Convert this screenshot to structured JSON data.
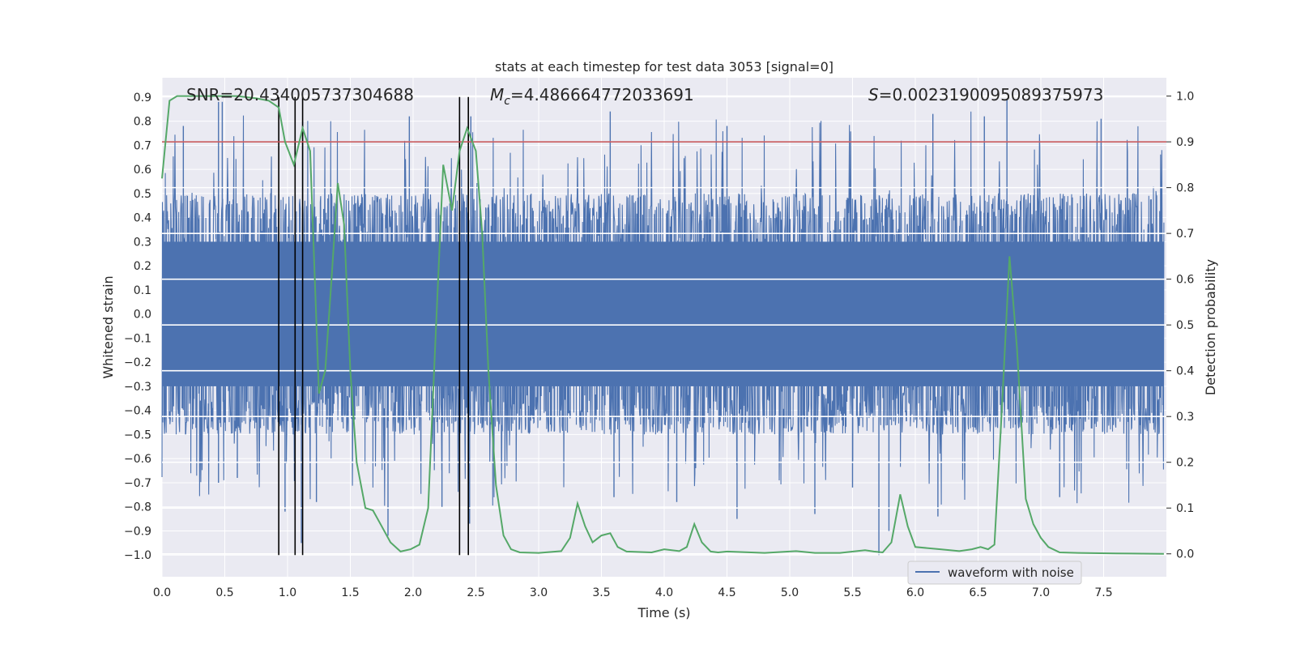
{
  "chart_data": {
    "type": "line",
    "title": "stats at each timestep for test data 3053 [signal=0]",
    "xlabel": "Time (s)",
    "ylabel_left": "Whitened strain",
    "ylabel_right": "Detection probability",
    "xlim": [
      0.0,
      8.0
    ],
    "ylim_left": [
      -1.09,
      0.98
    ],
    "ylim_right": [
      -0.05,
      1.04
    ],
    "x_ticks": [
      0.0,
      0.5,
      1.0,
      1.5,
      2.0,
      2.5,
      3.0,
      3.5,
      4.0,
      4.5,
      5.0,
      5.5,
      6.0,
      6.5,
      7.0,
      7.5
    ],
    "x_tick_labels": [
      "0.0",
      "0.5",
      "1.0",
      "1.5",
      "2.0",
      "2.5",
      "3.0",
      "3.5",
      "4.0",
      "4.5",
      "5.0",
      "5.5",
      "6.0",
      "6.5",
      "7.0",
      "7.5"
    ],
    "y_left_ticks": [
      0.9,
      0.8,
      0.7,
      0.6,
      0.5,
      0.4,
      0.3,
      0.2,
      0.1,
      0.0,
      -0.1,
      -0.2,
      -0.3,
      -0.4,
      -0.5,
      -0.6,
      -0.7,
      -0.8,
      -0.9,
      -1.0
    ],
    "y_left_tick_labels": [
      "0.9",
      "0.8",
      "0.7",
      "0.6",
      "0.5",
      "0.4",
      "0.3",
      "0.2",
      "0.1",
      "0.0",
      "−0.1",
      "−0.2",
      "−0.3",
      "−0.4",
      "−0.5",
      "−0.6",
      "−0.7",
      "−0.8",
      "−0.9",
      "−1.0"
    ],
    "y_right_ticks": [
      1.0,
      0.9,
      0.8,
      0.7,
      0.6,
      0.5,
      0.4,
      0.3,
      0.2,
      0.1,
      0.0
    ],
    "y_right_tick_labels": [
      "1.0",
      "0.9",
      "0.8",
      "0.7",
      "0.6",
      "0.5",
      "0.4",
      "0.3",
      "0.2",
      "0.1",
      "0.0"
    ],
    "annotations": {
      "snr": "SNR=20.434005737304688",
      "mc_symbol": "M",
      "mc_sub": "c",
      "mc_value": "=4.486664772033691",
      "s_symbol": "S",
      "s_value": "=0.0023190095089375973"
    },
    "threshold": {
      "value": 0.9,
      "axis": "right",
      "color": "#c44e52"
    },
    "vertical_markers": [
      0.93,
      1.06,
      1.12,
      2.37,
      2.44
    ],
    "vertical_marker_range": [
      -1.0,
      0.9
    ],
    "legend": {
      "label": "waveform with noise",
      "position": "lower-right"
    },
    "series": [
      {
        "name": "waveform with noise",
        "axis": "left",
        "color": "#4c72b0",
        "dense_band": [
          -0.3,
          0.3
        ],
        "envelope_amplitude": 0.5,
        "peaks": [
          {
            "x": 0.45,
            "y": 0.88
          },
          {
            "x": 0.48,
            "y": 0.88
          },
          {
            "x": 1.12,
            "y": 0.8
          },
          {
            "x": 1.97,
            "y": 0.82
          },
          {
            "x": 2.37,
            "y": 0.82
          },
          {
            "x": 2.46,
            "y": 0.82
          },
          {
            "x": 3.57,
            "y": 0.84
          },
          {
            "x": 6.73,
            "y": 0.89
          },
          {
            "x": 6.55,
            "y": 0.82
          },
          {
            "x": 6.14,
            "y": 0.83
          },
          {
            "x": 7.48,
            "y": 0.81
          },
          {
            "x": 0.17,
            "y": 0.78
          },
          {
            "x": 4.5,
            "y": 0.78
          },
          {
            "x": 5.71,
            "y": -1.0
          },
          {
            "x": 1.11,
            "y": -0.95
          },
          {
            "x": 1.8,
            "y": -0.92
          },
          {
            "x": 5.79,
            "y": -0.9
          },
          {
            "x": 4.58,
            "y": -0.85
          },
          {
            "x": 6.18,
            "y": -0.84
          },
          {
            "x": 5.2,
            "y": -0.83
          },
          {
            "x": 2.45,
            "y": -0.87
          },
          {
            "x": 2.23,
            "y": -0.8
          },
          {
            "x": 0.98,
            "y": -0.82
          },
          {
            "x": 1.23,
            "y": -0.78
          },
          {
            "x": 7.15,
            "y": -0.76
          },
          {
            "x": 0.45,
            "y": -0.7
          },
          {
            "x": 0.6,
            "y": -0.68
          },
          {
            "x": 3.6,
            "y": -0.76
          },
          {
            "x": 4.1,
            "y": -0.78
          },
          {
            "x": 5.5,
            "y": -0.72
          }
        ]
      },
      {
        "name": "detection probability",
        "axis": "right",
        "color": "#55a868",
        "x": [
          0.0,
          0.06,
          0.12,
          0.3,
          0.45,
          0.6,
          0.75,
          0.85,
          0.93,
          0.98,
          1.05,
          1.12,
          1.18,
          1.25,
          1.3,
          1.35,
          1.4,
          1.45,
          1.5,
          1.55,
          1.62,
          1.68,
          1.75,
          1.82,
          1.9,
          1.98,
          2.05,
          2.12,
          2.18,
          2.24,
          2.31,
          2.37,
          2.43,
          2.5,
          2.55,
          2.6,
          2.66,
          2.72,
          2.78,
          2.85,
          3.0,
          3.18,
          3.25,
          3.31,
          3.37,
          3.43,
          3.5,
          3.57,
          3.63,
          3.7,
          3.9,
          4.0,
          4.12,
          4.18,
          4.24,
          4.3,
          4.37,
          4.43,
          4.5,
          4.8,
          5.05,
          5.2,
          5.4,
          5.6,
          5.67,
          5.74,
          5.81,
          5.88,
          5.94,
          6.0,
          6.2,
          6.35,
          6.45,
          6.52,
          6.58,
          6.63,
          6.69,
          6.75,
          6.81,
          6.88,
          6.94,
          7.0,
          7.06,
          7.15,
          7.3,
          7.6,
          7.98
        ],
        "y": [
          0.82,
          0.99,
          1.0,
          1.0,
          1.0,
          1.0,
          0.995,
          0.99,
          0.975,
          0.9,
          0.85,
          0.93,
          0.88,
          0.35,
          0.4,
          0.6,
          0.81,
          0.72,
          0.4,
          0.2,
          0.1,
          0.095,
          0.06,
          0.025,
          0.005,
          0.01,
          0.02,
          0.1,
          0.48,
          0.85,
          0.75,
          0.88,
          0.93,
          0.88,
          0.7,
          0.4,
          0.15,
          0.04,
          0.01,
          0.003,
          0.002,
          0.006,
          0.035,
          0.11,
          0.06,
          0.025,
          0.04,
          0.045,
          0.015,
          0.005,
          0.003,
          0.01,
          0.006,
          0.015,
          0.065,
          0.025,
          0.005,
          0.003,
          0.005,
          0.002,
          0.006,
          0.002,
          0.002,
          0.008,
          0.005,
          0.003,
          0.025,
          0.13,
          0.06,
          0.015,
          0.01,
          0.006,
          0.01,
          0.015,
          0.01,
          0.02,
          0.32,
          0.65,
          0.45,
          0.12,
          0.065,
          0.035,
          0.015,
          0.003,
          0.002,
          0.001,
          0.0
        ]
      }
    ]
  }
}
